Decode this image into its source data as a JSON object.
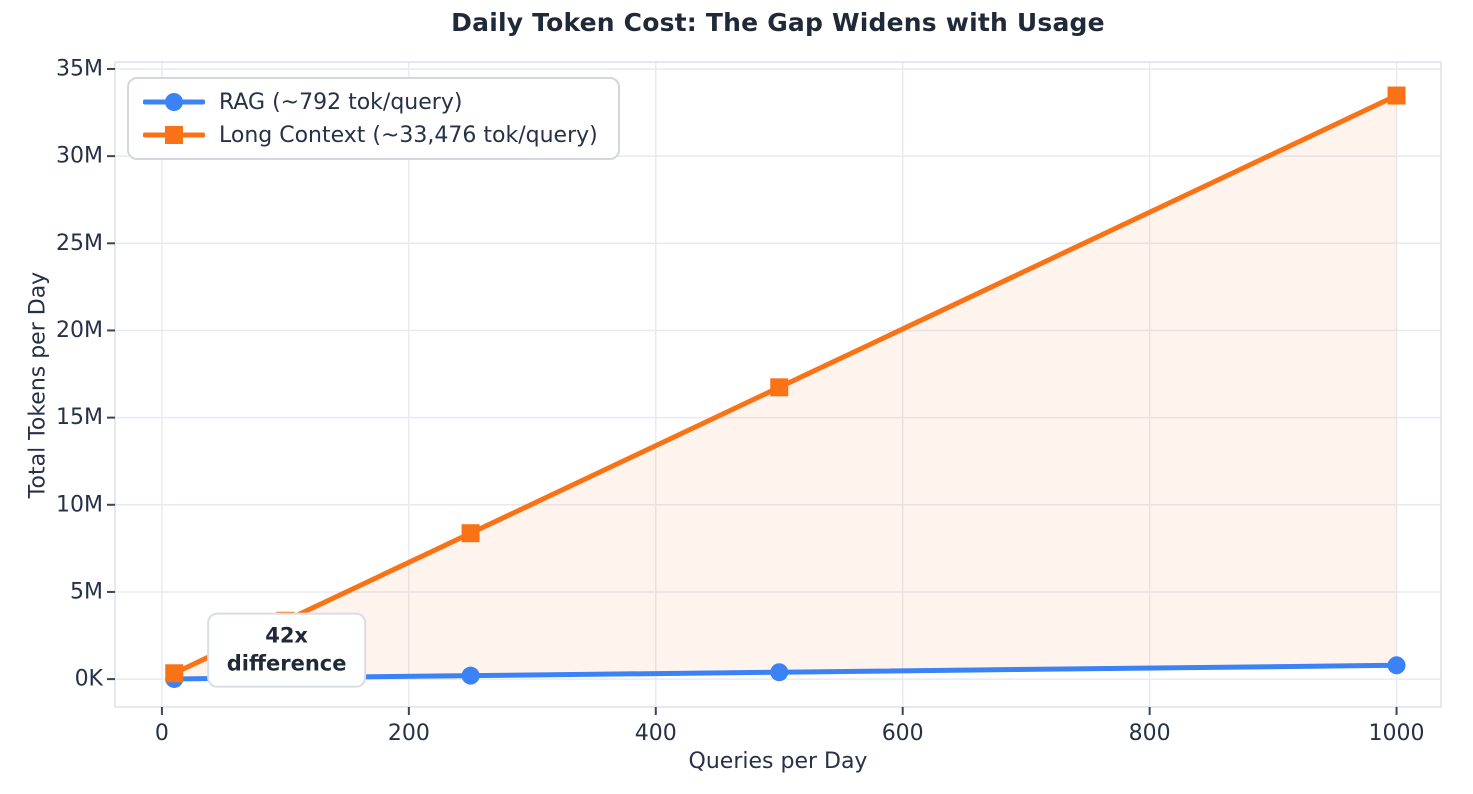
{
  "chart_data": {
    "type": "line",
    "title": "Daily Token Cost: The Gap Widens with Usage",
    "xlabel": "Queries per Day",
    "ylabel": "Total Tokens per Day",
    "x": [
      10,
      50,
      100,
      250,
      500,
      1000
    ],
    "series": [
      {
        "name": "RAG (~792 tok/query)",
        "color": "#3b82f6",
        "marker": "circle",
        "values": [
          7920,
          39600,
          79200,
          198000,
          396000,
          792000
        ]
      },
      {
        "name": "Long Context (~33,476 tok/query)",
        "color": "#f97316",
        "marker": "square",
        "values": [
          334760,
          1673800,
          3347600,
          8369000,
          16738000,
          33476000
        ]
      }
    ],
    "fill_between": {
      "upper_series": 1,
      "lower_series": 0,
      "color": "#f97316",
      "opacity": 0.08
    },
    "annotation": {
      "lines": [
        "42x",
        "difference"
      ],
      "x": 101,
      "y": 1670000
    },
    "xticks": {
      "values": [
        0,
        200,
        400,
        600,
        800,
        1000
      ],
      "labels": [
        "0",
        "200",
        "400",
        "600",
        "800",
        "1000"
      ]
    },
    "yticks": {
      "values": [
        0,
        5000000,
        10000000,
        15000000,
        20000000,
        25000000,
        30000000,
        35000000
      ],
      "labels": [
        "0K",
        "5M",
        "10M",
        "15M",
        "20M",
        "25M",
        "30M",
        "35M"
      ]
    },
    "xlim": [
      -38,
      1036
    ],
    "ylim": [
      -1600000,
      35400000
    ],
    "grid": true,
    "legend_position": "upper-left"
  },
  "colors": {
    "grid": "#e8eaf1",
    "spine": "#dde1ec",
    "tick_mark": "#3b4456",
    "tick_text": "#263147",
    "title_text": "#1f2937",
    "background": "#ffffff"
  }
}
